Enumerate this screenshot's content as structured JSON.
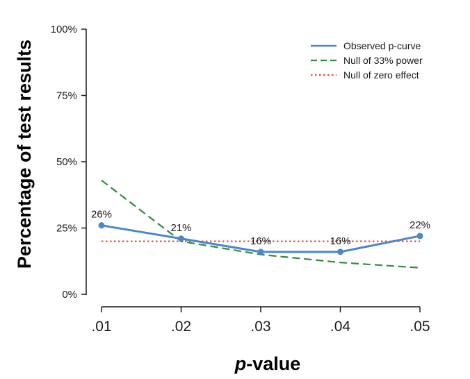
{
  "chart_data": {
    "type": "line",
    "xlabel_italic": "p",
    "xlabel_rest": "-value",
    "ylabel": "Percentage of test results",
    "categories": [
      ".01",
      ".02",
      ".03",
      ".04",
      ".05"
    ],
    "x": [
      0.01,
      0.02,
      0.03,
      0.04,
      0.05
    ],
    "yticks": [
      "0%",
      "25%",
      "50%",
      "75%",
      "100%"
    ],
    "ylim": [
      0,
      100
    ],
    "grid": false,
    "legend_position": "top-right",
    "series": [
      {
        "name": "Observed p-curve",
        "values": [
          26,
          21,
          16,
          16,
          22
        ],
        "labels": [
          "26%",
          "21%",
          "16%",
          "16%",
          "22%"
        ],
        "color": "#4a87c9",
        "style": "solid"
      },
      {
        "name": "Null of 33% power",
        "values": [
          43,
          20,
          15,
          12,
          10
        ],
        "color": "#2e8b3a",
        "style": "dashed"
      },
      {
        "name": "Null of zero effect",
        "values": [
          20,
          20,
          20,
          20,
          20
        ],
        "color": "#f04a3a",
        "style": "dotted"
      }
    ]
  }
}
